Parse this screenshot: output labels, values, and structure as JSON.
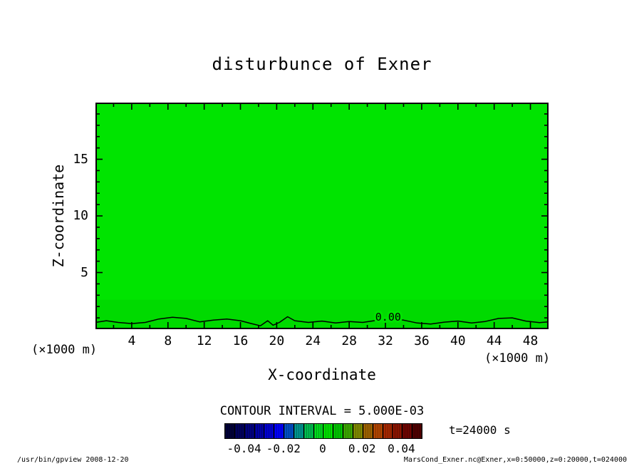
{
  "footer": {
    "left": "/usr/bin/gpview  2008-12-20",
    "right": "MarsCond_Exner.nc@Exner,x=0:50000,z=0:20000,t=024000"
  },
  "chart_data": {
    "type": "heatmap",
    "title": "disturbunce of Exner",
    "xlabel": "X-coordinate",
    "ylabel": "Z-coordinate",
    "x_axis_units": "(×1000 m)",
    "y_axis_units": "(×1000 m)",
    "xlim": [
      0,
      50
    ],
    "ylim": [
      0,
      20
    ],
    "x_ticks": [
      4,
      8,
      12,
      16,
      20,
      24,
      28,
      32,
      36,
      40,
      44,
      48
    ],
    "x_minor_step": 2,
    "y_ticks": [
      5,
      10,
      15
    ],
    "y_minor_step": 1,
    "grid": false,
    "fill": {
      "main_color": "#00e400",
      "lower_band_color": "#00da00",
      "lower_band_top_z": 2.6
    },
    "contour_interval": 0.005,
    "zero_contour": {
      "label": "0.00",
      "label_x": 32.3,
      "label_z": 0.75,
      "points": [
        [
          0,
          0.6
        ],
        [
          1.2,
          0.75
        ],
        [
          2.5,
          0.6
        ],
        [
          4,
          0.5
        ],
        [
          5.5,
          0.6
        ],
        [
          7,
          0.9
        ],
        [
          8.5,
          1.05
        ],
        [
          10,
          0.95
        ],
        [
          11.5,
          0.65
        ],
        [
          13,
          0.8
        ],
        [
          14.5,
          0.9
        ],
        [
          16,
          0.75
        ],
        [
          17.2,
          0.5
        ],
        [
          18.2,
          0.3
        ],
        [
          19,
          0.75
        ],
        [
          19.6,
          0.35
        ],
        [
          20.3,
          0.6
        ],
        [
          21.2,
          1.1
        ],
        [
          22,
          0.75
        ],
        [
          23.5,
          0.6
        ],
        [
          25,
          0.72
        ],
        [
          26.5,
          0.55
        ],
        [
          28,
          0.68
        ],
        [
          29.5,
          0.6
        ],
        [
          31,
          0.78
        ],
        [
          32.5,
          0.95
        ],
        [
          34,
          0.8
        ],
        [
          35.5,
          0.55
        ],
        [
          37,
          0.45
        ],
        [
          38.5,
          0.62
        ],
        [
          40,
          0.72
        ],
        [
          41.5,
          0.55
        ],
        [
          43,
          0.68
        ],
        [
          44.5,
          0.95
        ],
        [
          46,
          1.0
        ],
        [
          47.5,
          0.72
        ],
        [
          49,
          0.58
        ],
        [
          50,
          0.65
        ]
      ]
    },
    "colorbar": {
      "min": -0.05,
      "max": 0.05,
      "tick_values": [
        -0.04,
        -0.02,
        0,
        0.02,
        0.04
      ],
      "tick_labels": [
        "-0.04",
        "-0.02",
        "0",
        "0.02",
        "0.04"
      ],
      "segment_colors": [
        "#000038",
        "#00005c",
        "#000080",
        "#0000a8",
        "#0000d4",
        "#0000ff",
        "#0050c8",
        "#009690",
        "#00be50",
        "#00dc1e",
        "#00e400",
        "#00c800",
        "#3caa00",
        "#828c00",
        "#a06400",
        "#b44600",
        "#a82800",
        "#8c1400",
        "#700400",
        "#500000"
      ]
    },
    "annotations": {
      "contour_interval_label": "CONTOUR INTERVAL = 5.000E-03",
      "time_label": "t=24000 s"
    }
  }
}
